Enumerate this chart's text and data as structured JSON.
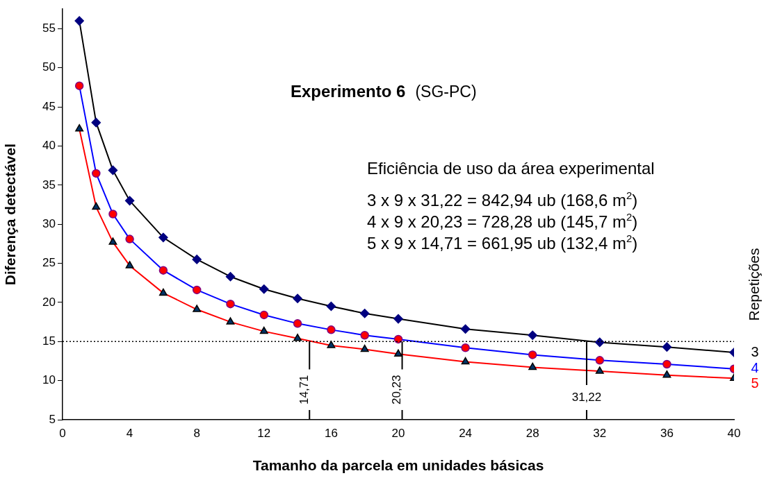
{
  "chart_data": {
    "type": "line",
    "title": "Experimento 6",
    "subtitle": "(SG-PC)",
    "xlabel": "Tamanho da parcela em unidades básicas",
    "ylabel": "Diferença detectável",
    "legend_title": "Repetições",
    "legend": "right",
    "grid": false,
    "x": [
      1,
      2,
      3,
      4,
      6,
      8,
      10,
      12,
      14,
      16,
      18,
      20,
      24,
      28,
      32,
      36,
      40
    ],
    "series": [
      {
        "name": "3",
        "color": "#000000",
        "marker": "diamond",
        "values": [
          56.0,
          43.0,
          36.9,
          33.0,
          28.3,
          25.5,
          23.3,
          21.7,
          20.5,
          19.5,
          18.6,
          17.9,
          16.6,
          15.8,
          14.9,
          14.3,
          13.6
        ]
      },
      {
        "name": "4",
        "color": "#0000ff",
        "marker": "circle",
        "values": [
          47.7,
          36.5,
          31.3,
          28.1,
          24.1,
          21.6,
          19.8,
          18.4,
          17.3,
          16.5,
          15.8,
          15.3,
          14.2,
          13.3,
          12.6,
          12.1,
          11.5
        ]
      },
      {
        "name": "5",
        "color": "#ff0000",
        "marker": "triangle",
        "values": [
          42.2,
          32.2,
          27.7,
          24.7,
          21.2,
          19.1,
          17.5,
          16.3,
          15.4,
          14.5,
          14.0,
          13.4,
          12.4,
          11.7,
          11.2,
          10.7,
          10.3
        ]
      }
    ],
    "xlim": [
      0,
      40
    ],
    "xticks": [
      0,
      4,
      8,
      12,
      16,
      20,
      24,
      28,
      32,
      36,
      40
    ],
    "ylim": [
      5,
      57.5
    ],
    "yticks": [
      5,
      10,
      15,
      20,
      25,
      30,
      35,
      40,
      45,
      50,
      55
    ],
    "ref_lines": [
      {
        "axis": "y",
        "value": 15,
        "line_style": "dotted",
        "color": "#000000"
      },
      {
        "axis": "x",
        "value": 14.71,
        "label": "14,71",
        "color": "#000000"
      },
      {
        "axis": "x",
        "value": 20.23,
        "label": "20,23",
        "color": "#000000"
      },
      {
        "axis": "x",
        "value": 31.22,
        "label": "31,22",
        "color": "#000000"
      }
    ],
    "annotations": [
      "Eficiência de uso da área experimental",
      "3 x 9 x 31,22 = 842,94 ub (168,6 m$^{2}$)",
      "4 x 9 x 20,23 = 728,28 ub (145,7 m$^{2}$)",
      "5 x 9 x 14,71 = 661,95 ub (132,4 m$^{2}$)"
    ]
  }
}
